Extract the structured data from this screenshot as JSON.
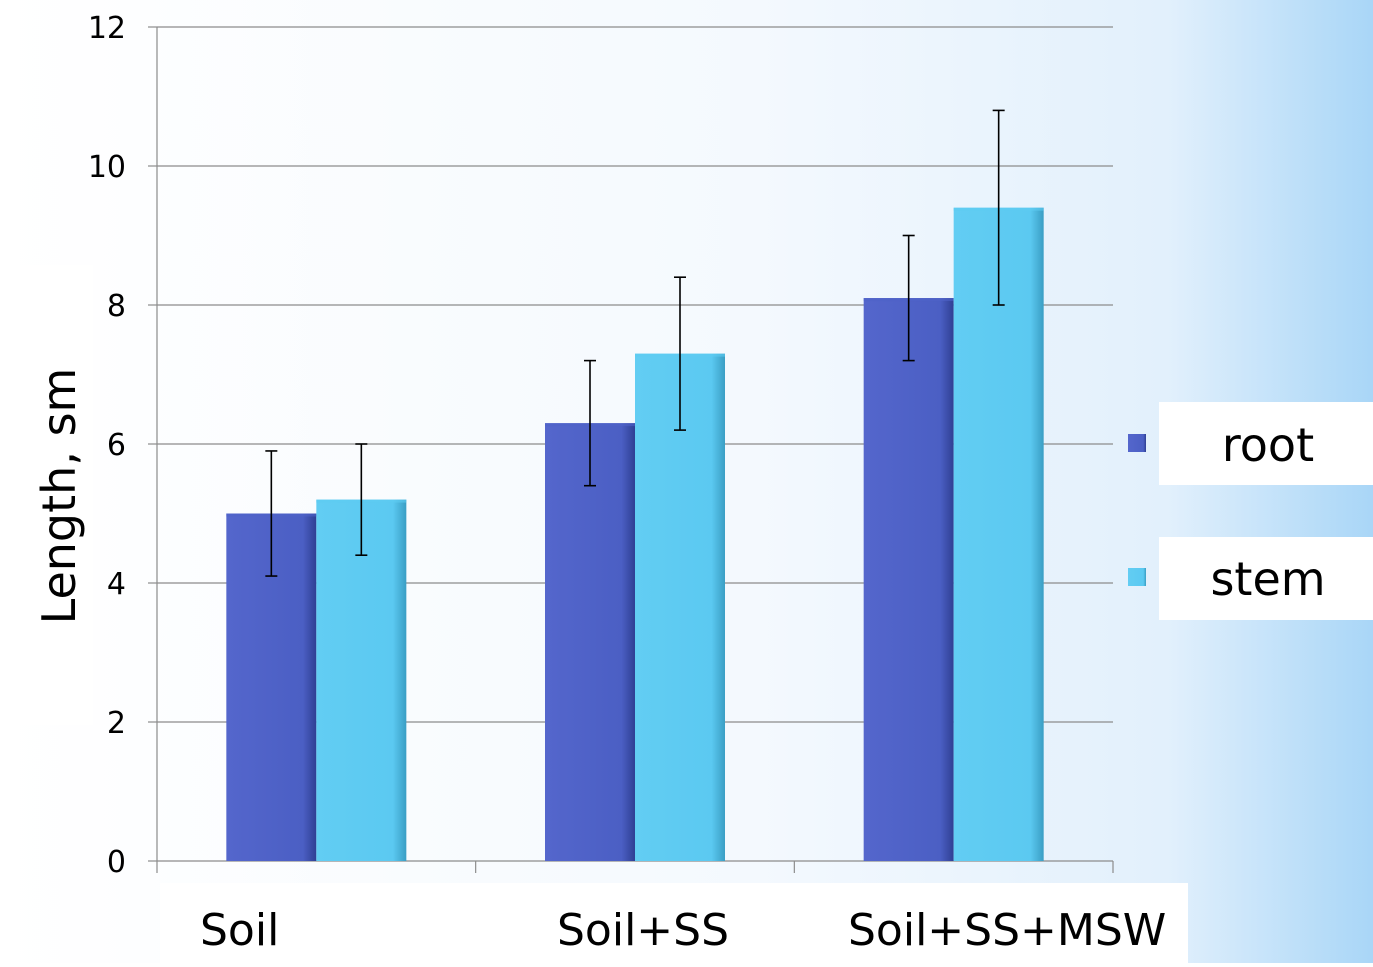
{
  "chart_data": {
    "type": "bar",
    "categories": [
      "Soil",
      "Soil+SS",
      "Soil+SS+MSW"
    ],
    "series": [
      {
        "name": "root",
        "values": [
          5.0,
          6.3,
          8.1
        ],
        "error_low": [
          4.1,
          5.4,
          7.2
        ],
        "error_high": [
          5.9,
          7.2,
          9.0
        ],
        "color": "#4F63C8"
      },
      {
        "name": "stem",
        "values": [
          5.2,
          7.3,
          9.4
        ],
        "error_low": [
          4.4,
          6.2,
          8.0
        ],
        "error_high": [
          6.0,
          8.4,
          10.8
        ],
        "color": "#5ECBF2"
      }
    ],
    "ylabel": "Length, sm",
    "xlabel": "",
    "ylim": [
      0,
      12
    ],
    "yticks": [
      "0",
      "2",
      "4",
      "6",
      "8",
      "10",
      "12"
    ],
    "grid": true,
    "legend_position": "right"
  }
}
